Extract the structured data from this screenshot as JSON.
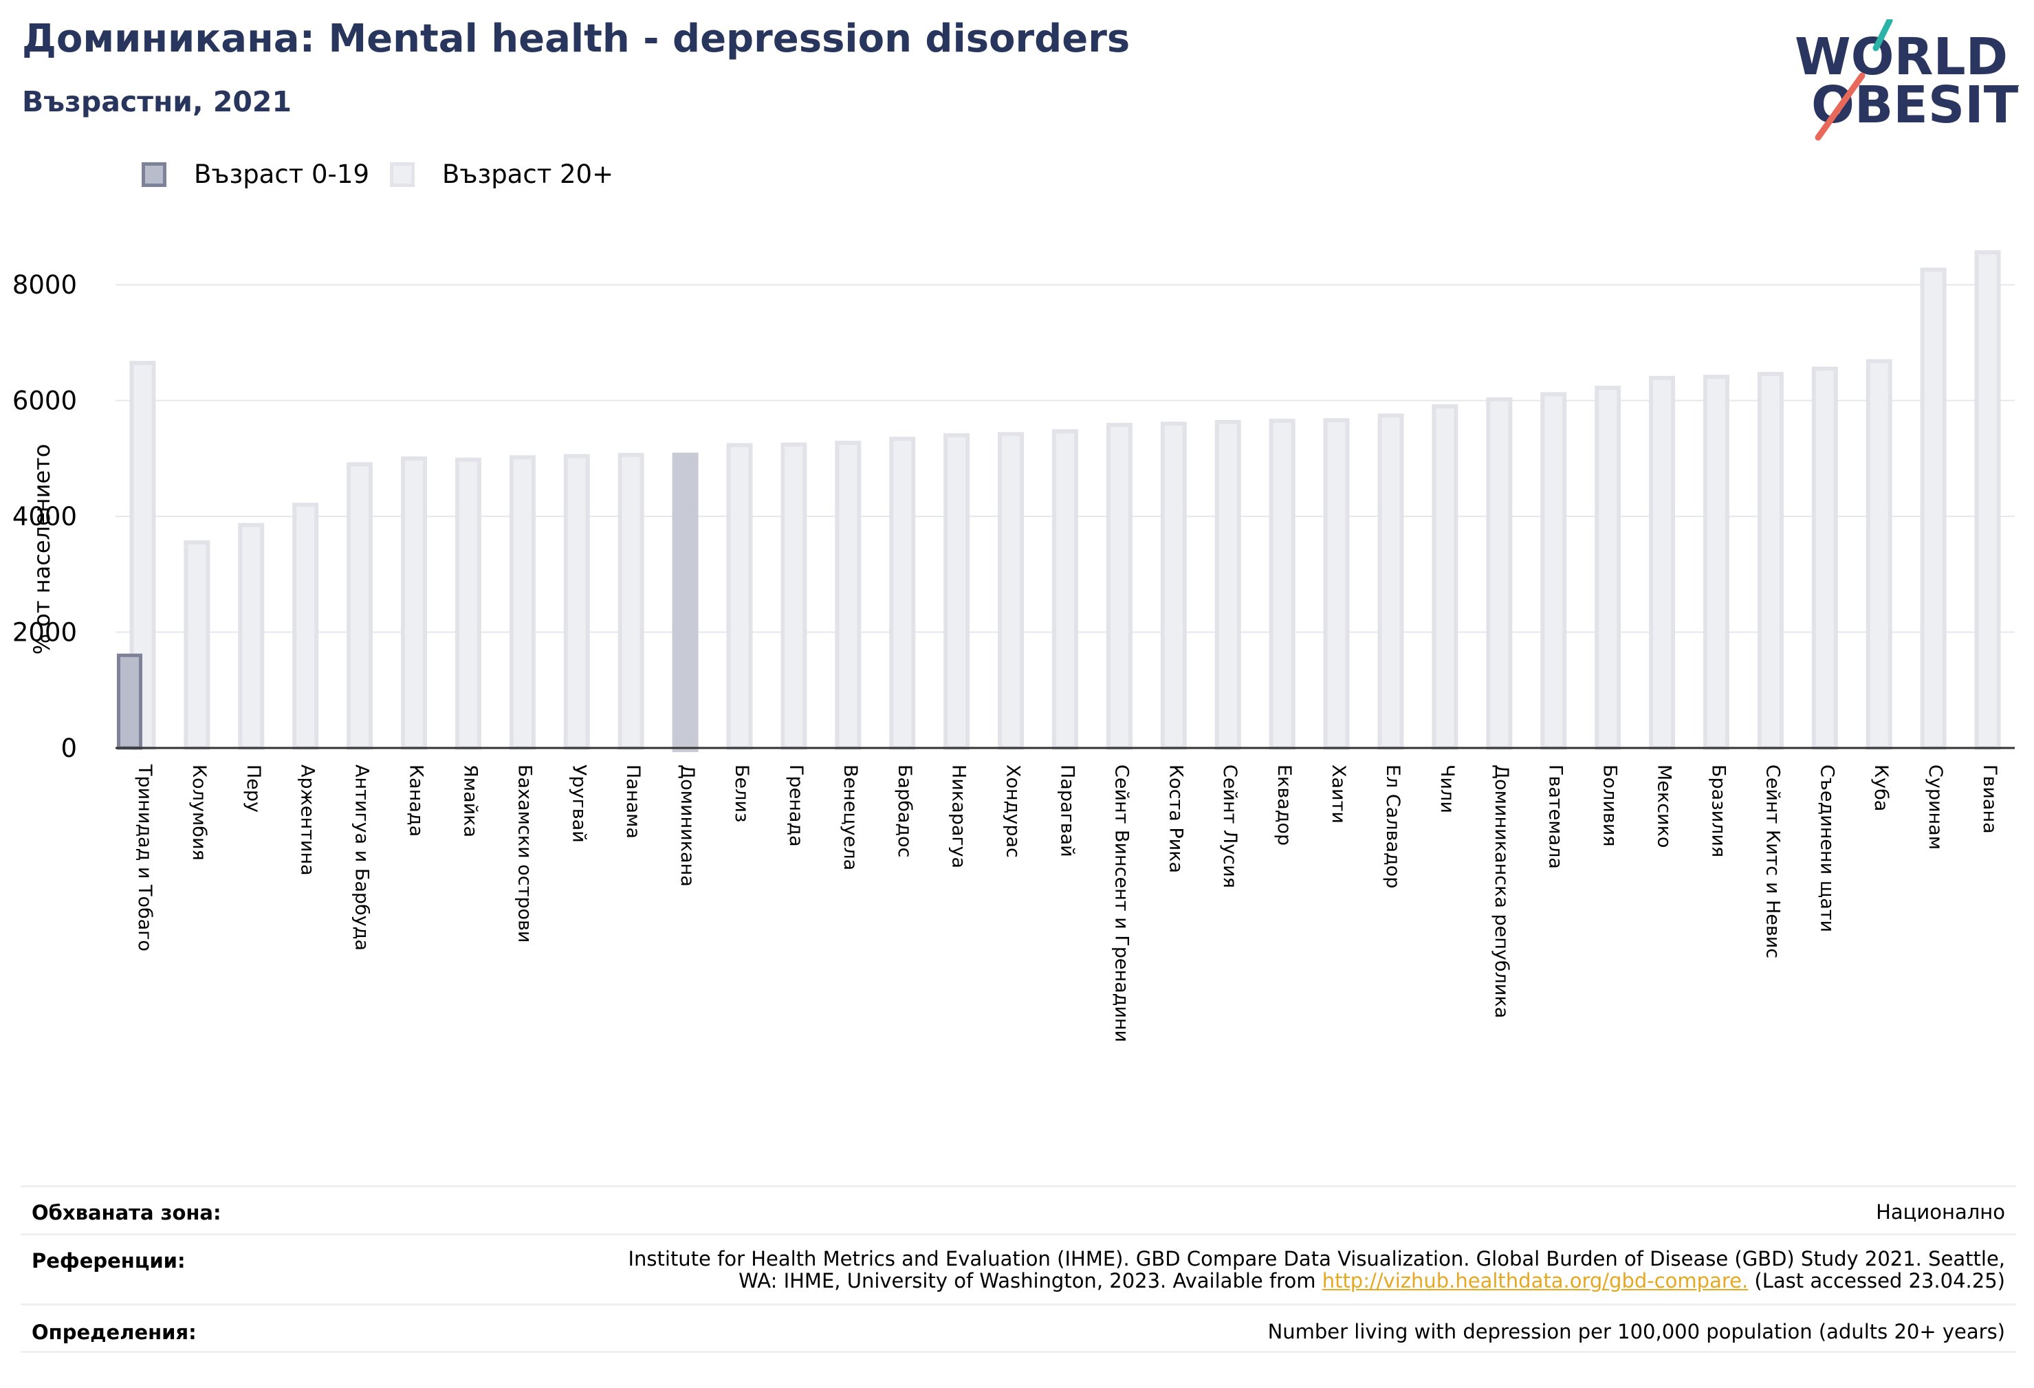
{
  "header": {
    "title": "Доминикана: Mental health - depression disorders",
    "subtitle": "Възрастни, 2021"
  },
  "logo": {
    "line1": "WORLD",
    "line2": "OBESITY",
    "accent_teal": "#2bb3a7",
    "accent_red": "#e8695a",
    "text_color": "#2a3560"
  },
  "legend": {
    "items": [
      {
        "label": "Възраст 0-19",
        "color": "#b9bccb"
      },
      {
        "label": "Възраст 20+",
        "color": "#eeeff3"
      }
    ]
  },
  "chart_data": {
    "type": "bar",
    "ylabel": "% от населението",
    "ylim": [
      0,
      9000
    ],
    "yticks": [
      0,
      2000,
      4000,
      6000,
      8000
    ],
    "grid": true,
    "highlight": "Доминикана",
    "categories": [
      "Тринидад и Тобаго",
      "Колумбия",
      "Перу",
      "Аржентина",
      "Антигуа и Барбуда",
      "Канада",
      "Ямайка",
      "Бахамски острови",
      "Уругвай",
      "Панама",
      "Доминикана",
      "Белиз",
      "Гренада",
      "Венецуела",
      "Барбадос",
      "Никарагуа",
      "Хондурас",
      "Парагвай",
      "Сейнт Винсент и Гренадини",
      "Коста Рика",
      "Сейнт Лусия",
      "Еквадор",
      "Хаити",
      "Ел Салвадор",
      "Чили",
      "Доминиканска република",
      "Гватемала",
      "Боливия",
      "Мексико",
      "Бразилия",
      "Сейнт Китс и Невис",
      "Съединени щати",
      "Куба",
      "Суринам",
      "Гвиана"
    ],
    "series": [
      {
        "name": "Възраст 0-19",
        "values": [
          1600,
          null,
          null,
          null,
          null,
          null,
          null,
          null,
          null,
          null,
          null,
          null,
          null,
          null,
          null,
          null,
          null,
          null,
          null,
          null,
          null,
          null,
          null,
          null,
          null,
          null,
          null,
          null,
          null,
          null,
          null,
          null,
          null,
          null,
          null
        ]
      },
      {
        "name": "Възраст 20+",
        "values": [
          6650,
          3550,
          3850,
          4200,
          4900,
          5000,
          4980,
          5020,
          5040,
          5060,
          5100,
          5230,
          5240,
          5270,
          5340,
          5400,
          5420,
          5470,
          5580,
          5600,
          5630,
          5650,
          5660,
          5740,
          5900,
          6020,
          6110,
          6220,
          6390,
          6410,
          6460,
          6550,
          6680,
          8260,
          8560
        ]
      }
    ]
  },
  "info": {
    "rows": [
      {
        "label": "Обхваната зона:",
        "value": "Национално"
      },
      {
        "label": "Референции:",
        "value_line1": "Institute for Health Metrics and Evaluation (IHME). GBD Compare Data Visualization. Global Burden of Disease (GBD) Study 2021. Seattle,",
        "value_line2_pre": "WA: IHME, University of Washington, 2023. Available from ",
        "link": "http://vizhub.healthdata.org/gbd-compare.",
        "value_line2_post": " (Last accessed 23.04.25)"
      },
      {
        "label": "Определения:",
        "value": "Number living with depression per 100,000 population (adults 20+ years)"
      }
    ]
  }
}
